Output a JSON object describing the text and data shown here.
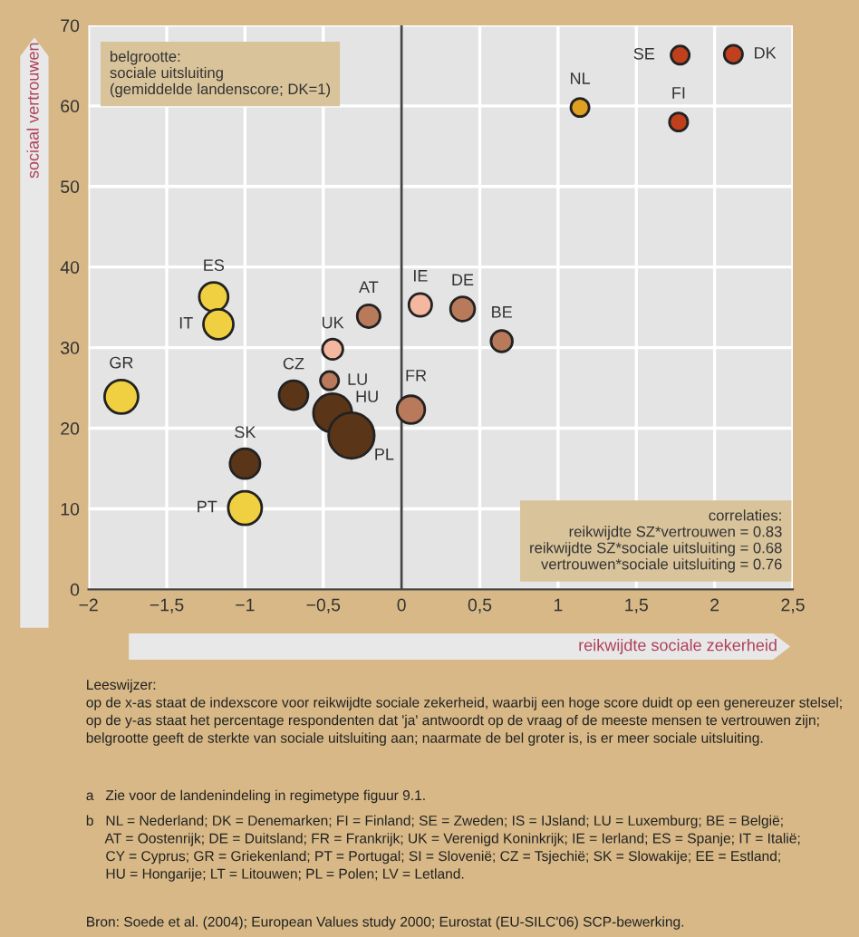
{
  "chart_data": {
    "type": "bubble",
    "xlabel": "reikwijdte sociale zekerheid",
    "ylabel": "sociaal vertrouwen",
    "xlim": [
      -2,
      2.5
    ],
    "ylim": [
      0,
      70
    ],
    "xticks": [
      {
        "value": -2,
        "label": "−2"
      },
      {
        "value": -1.5,
        "label": "−1,5"
      },
      {
        "value": -1,
        "label": "−1"
      },
      {
        "value": -0.5,
        "label": "−0,5"
      },
      0,
      {
        "value": 0.5,
        "label": "0,5"
      },
      1,
      {
        "value": 1.5,
        "label": "1,5"
      },
      2,
      {
        "value": 2.5,
        "label": "2,5"
      }
    ],
    "yticks": [
      0,
      10,
      20,
      30,
      40,
      50,
      60,
      70
    ],
    "grid": true,
    "legend": false,
    "ref_lines": [
      {
        "axis": "x",
        "value": 0,
        "color": "#444444",
        "line_style": "solid"
      }
    ],
    "series": [
      {
        "name": "SE",
        "color": "#c0401e",
        "x": [
          1.78
        ],
        "values": [
          66.3
        ],
        "sizes": [
          0.16
        ]
      },
      {
        "name": "DK",
        "color": "#c0401e",
        "x": [
          2.12
        ],
        "values": [
          66.4
        ],
        "sizes": [
          0.16
        ]
      },
      {
        "name": "NL",
        "color": "#e0a020",
        "x": [
          1.14
        ],
        "values": [
          59.8
        ],
        "sizes": [
          0.16
        ]
      },
      {
        "name": "FI",
        "color": "#c0401e",
        "x": [
          1.77
        ],
        "values": [
          58.0
        ],
        "sizes": [
          0.16
        ]
      },
      {
        "name": "ES",
        "color": "#f0d040",
        "x": [
          -1.2
        ],
        "values": [
          36.3
        ],
        "sizes": [
          0.4
        ]
      },
      {
        "name": "IT",
        "color": "#f0d040",
        "x": [
          -1.17
        ],
        "values": [
          32.9
        ],
        "sizes": [
          0.43
        ]
      },
      {
        "name": "AT",
        "color": "#b87a5a",
        "x": [
          -0.21
        ],
        "values": [
          33.9
        ],
        "sizes": [
          0.25
        ]
      },
      {
        "name": "IE",
        "color": "#f4b8a0",
        "x": [
          0.12
        ],
        "values": [
          35.3
        ],
        "sizes": [
          0.25
        ]
      },
      {
        "name": "DE",
        "color": "#b87a5a",
        "x": [
          0.39
        ],
        "values": [
          34.8
        ],
        "sizes": [
          0.28
        ]
      },
      {
        "name": "BE",
        "color": "#b87a5a",
        "x": [
          0.64
        ],
        "values": [
          30.8
        ],
        "sizes": [
          0.22
        ]
      },
      {
        "name": "UK",
        "color": "#f4b8a0",
        "x": [
          -0.44
        ],
        "values": [
          29.8
        ],
        "sizes": [
          0.2
        ]
      },
      {
        "name": "GR",
        "color": "#f0d040",
        "x": [
          -1.79
        ],
        "values": [
          23.9
        ],
        "sizes": [
          0.54
        ]
      },
      {
        "name": "CZ",
        "color": "#5a3518",
        "x": [
          -0.69
        ],
        "values": [
          24.1
        ],
        "sizes": [
          0.4
        ]
      },
      {
        "name": "LU",
        "color": "#b87a5a",
        "x": [
          -0.46
        ],
        "values": [
          25.9
        ],
        "sizes": [
          0.16
        ]
      },
      {
        "name": "HU",
        "color": "#5a3518",
        "x": [
          -0.44
        ],
        "values": [
          21.9
        ],
        "sizes": [
          0.71
        ]
      },
      {
        "name": "PL",
        "color": "#5a3518",
        "x": [
          -0.32
        ],
        "values": [
          19.1
        ],
        "sizes": [
          1
        ]
      },
      {
        "name": "FR",
        "color": "#b87a5a",
        "x": [
          0.06
        ],
        "values": [
          22.3
        ],
        "sizes": [
          0.37
        ]
      },
      {
        "name": "SK",
        "color": "#5a3518",
        "x": [
          -1.0
        ],
        "values": [
          15.6
        ],
        "sizes": [
          0.43
        ]
      },
      {
        "name": "PT",
        "color": "#f0d040",
        "x": [
          -1.0
        ],
        "values": [
          10.1
        ],
        "sizes": [
          0.54
        ]
      }
    ],
    "annotations": [
      "belgrootte:\nsociale uitsluiting\n(gemiddelde landenscore; DK=1)",
      "correlaties:\nreikwijdte SZ*vertrouwen = 0.83\nreikwijdte SZ*sociale uitsluiting = 0.68\nvertrouwen*sociale uitsluiting = 0.76",
      "Leeswijzer:\nop de x-as staat de indexscore voor reikwijdte sociale zekerheid, waarbij een hoge score duidt op een genereuzer stelsel;\nop de y-as staat het percentage respondenten dat 'ja' antwoordt op de vraag of de meeste mensen te vertrouwen zijn;\nbelgrootte geeft de sterkte van sociale uitsluiting aan; naarmate de bel groter is, is er meer sociale uitsluiting.",
      "a   Zie voor de landenindeling in regimetype figuur 9.1.",
      "b   NL = Nederland; DK = Denemarken; FI = Finland; SE = Zweden; IS = IJsland; LU = Luxemburg; BE = België;\n     AT = Oostenrijk; DE = Duitsland; FR = Frankrijk; UK = Verenigd Koninkrijk; IE = Ierland; ES = Spanje; IT = Italië;\n     CY = Cyprus; GR = Griekenland; PT = Portugal; SI = Slovenië; CZ = Tsjechië; SK = Slowakije; EE = Estland;\n     HU = Hongarije; LT = Litouwen; PL = Polen; LV = Letland.",
      "Bron: Soede et al. (2004); European Values study 2000; Eurostat (EU-SILC'06) SCP-bewerking."
    ]
  }
}
